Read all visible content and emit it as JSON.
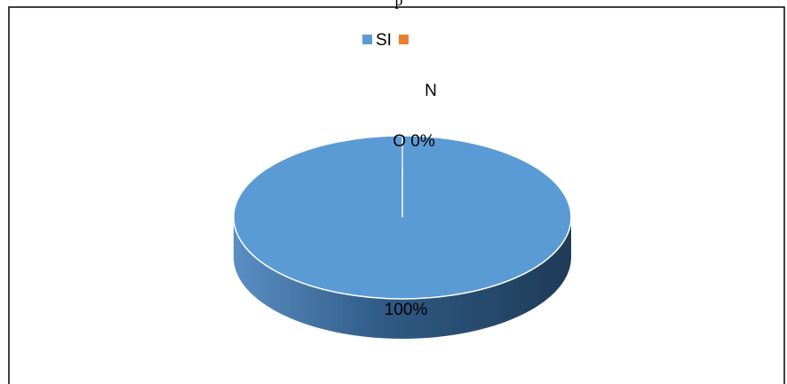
{
  "chart_data": {
    "type": "pie",
    "title": "p",
    "categories": [
      "SI",
      null
    ],
    "values": [
      100,
      0
    ],
    "value_labels": [
      "100%",
      "O 0%"
    ],
    "colors": [
      "#5b9bd5",
      "#ed7d31"
    ],
    "annotations": [
      "N"
    ],
    "legend": "top"
  }
}
